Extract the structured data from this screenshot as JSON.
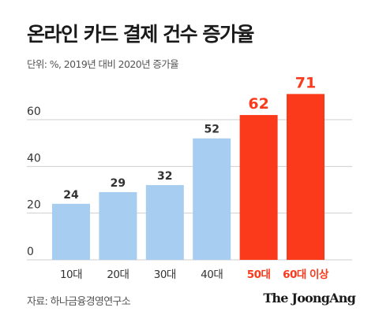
{
  "title": "온라인 카드 결제 건수 증가율",
  "subtitle": "단위: %, 2019년 대비 2020년 증가율",
  "source": "자료: 하나금융경영연구소",
  "brand": "The JoongAng",
  "colors": {
    "normal_bar": "#a7cdf0",
    "highlight_bar": "#fb3a1b",
    "normal_label": "#333333",
    "highlight_label": "#fb3a1b",
    "grid": "#cfcfcf",
    "axis_text": "#333333"
  },
  "chart_data": {
    "type": "bar",
    "categories": [
      "10대",
      "20대",
      "30대",
      "40대",
      "50대",
      "60대 이상"
    ],
    "values": [
      24,
      29,
      32,
      52,
      62,
      71
    ],
    "highlighted_categories": [
      "50대",
      "60대 이상"
    ],
    "title": "온라인 카드 결제 건수 증가율",
    "subtitle": "단위: %, 2019년 대비 2020년 증가율",
    "xlabel": "",
    "ylabel": "",
    "ylim": [
      0,
      70
    ],
    "yticks": [
      0,
      20,
      40,
      60
    ],
    "grid": true,
    "legend": "none"
  }
}
